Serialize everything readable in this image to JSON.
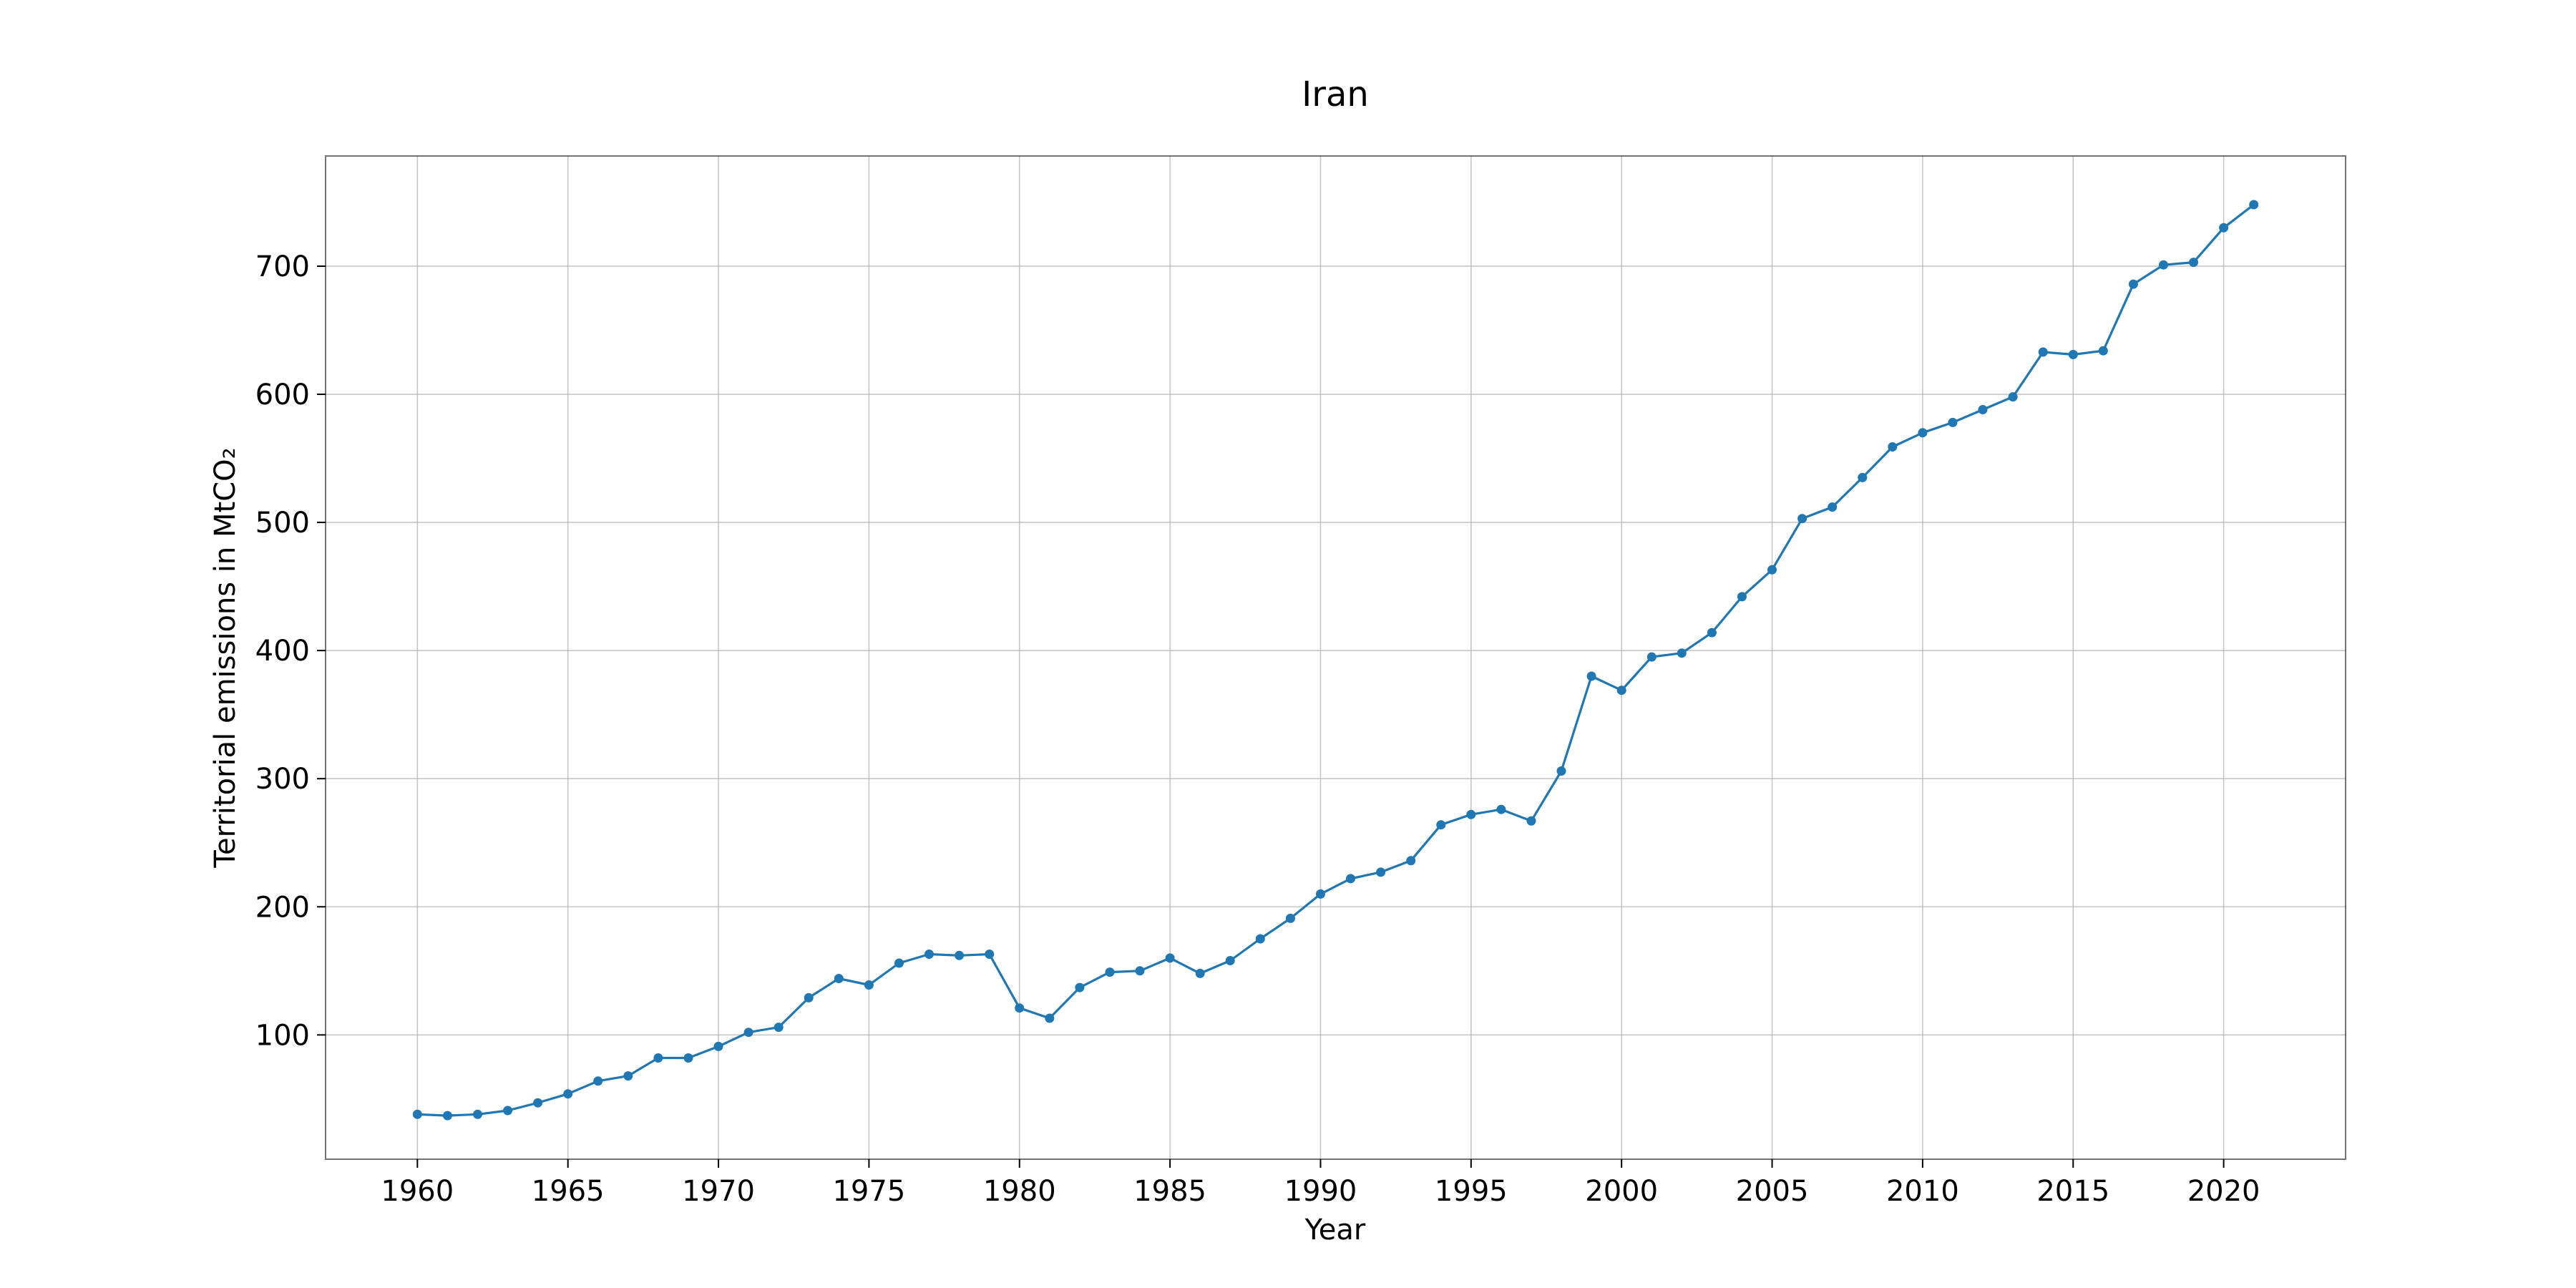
{
  "chart_data": {
    "type": "line",
    "title": "Iran",
    "xlabel": "Year",
    "ylabel": "Territorial emissions in MtCO₂",
    "xlim": [
      1956.95,
      2024.05
    ],
    "ylim": [
      3,
      786
    ],
    "xticks": [
      1960,
      1965,
      1970,
      1975,
      1980,
      1985,
      1990,
      1995,
      2000,
      2005,
      2010,
      2015,
      2020
    ],
    "yticks": [
      100,
      200,
      300,
      400,
      500,
      600,
      700
    ],
    "grid": true,
    "series": [
      {
        "color": "#1f77b4",
        "x": [
          1960,
          1961,
          1962,
          1963,
          1964,
          1965,
          1966,
          1967,
          1968,
          1969,
          1970,
          1971,
          1972,
          1973,
          1974,
          1975,
          1976,
          1977,
          1978,
          1979,
          1980,
          1981,
          1982,
          1983,
          1984,
          1985,
          1986,
          1987,
          1988,
          1989,
          1990,
          1991,
          1992,
          1993,
          1994,
          1995,
          1996,
          1997,
          1998,
          1999,
          2000,
          2001,
          2002,
          2003,
          2004,
          2005,
          2006,
          2007,
          2008,
          2009,
          2010,
          2011,
          2012,
          2013,
          2014,
          2015,
          2016,
          2017,
          2018,
          2019,
          2020,
          2021
        ],
        "y": [
          38,
          37,
          38,
          41,
          47,
          54,
          64,
          68,
          82,
          82,
          91,
          102,
          106,
          129,
          144,
          139,
          156,
          163,
          162,
          163,
          121,
          113,
          137,
          149,
          150,
          160,
          148,
          158,
          175,
          191,
          210,
          222,
          227,
          236,
          264,
          272,
          276,
          267,
          306,
          380,
          369,
          395,
          398,
          414,
          442,
          463,
          503,
          512,
          535,
          559,
          570,
          578,
          588,
          598,
          633,
          631,
          634,
          686,
          701,
          703,
          730,
          748
        ]
      }
    ]
  }
}
